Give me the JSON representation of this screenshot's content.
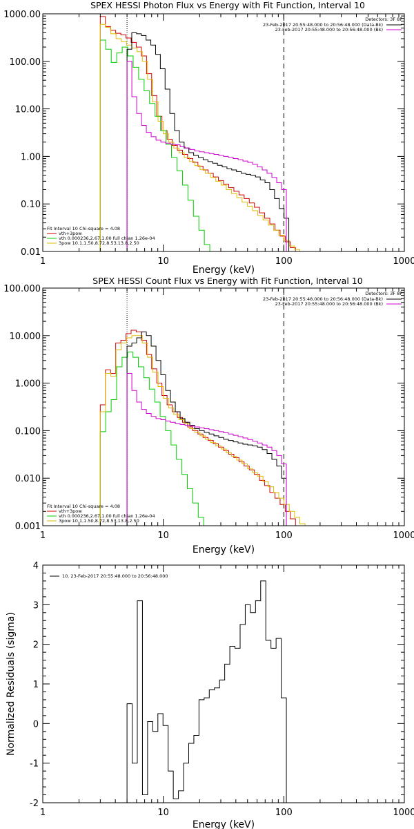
{
  "chart_data": [
    {
      "type": "line",
      "title": "SPEX HESSI Photon Flux vs Energy with Fit Function, Interval 10",
      "xlabel": "Energy (keV)",
      "ylabel": "",
      "xscale": "log",
      "yscale": "log",
      "xlim": [
        1,
        1000
      ],
      "ylim": [
        0.01,
        1000
      ],
      "xticks": [
        "1",
        "10",
        "100",
        "1000"
      ],
      "yticks": [
        "0.01",
        "0.10",
        "1.00",
        "10.00",
        "100.00",
        "1000.00"
      ],
      "vlines": {
        "dotted": 5,
        "dashed": 100
      },
      "legend_right": {
        "header": "Detectors: 3F 8F",
        "entries": [
          {
            "label": "23-Feb-2017 20:55:48.000 to 20:56:48.000 (Data-Bk)",
            "color": "#000000"
          },
          {
            "label": "23-Feb-2017 20:55:48.000 to 20:56:48.000 (Bk)",
            "color": "#cc00cc"
          }
        ]
      },
      "legend_left": {
        "header": "Fit Interval 10   Chi-square = 4.08",
        "entries": [
          {
            "label": "vth+3pow",
            "color": "#cc0000"
          },
          {
            "label": "vth 0.000236,2.67,1.00   full chian 1.26e-04",
            "color": "#00cc00"
          },
          {
            "label": "3pow 10.1,1.50,8.72,8.53,13.8,2.50",
            "color": "#ddbb00"
          }
        ]
      },
      "series": [
        {
          "name": "vth+3pow",
          "color": "#cc0000",
          "x_start": 3,
          "x_end": 125,
          "y": [
            880,
            540,
            450,
            390,
            360,
            310,
            250,
            200,
            130,
            55,
            19,
            7,
            3.5,
            2.3,
            1.7,
            1.35,
            1.1,
            0.9,
            0.75,
            0.62,
            0.52,
            0.44,
            0.37,
            0.31,
            0.26,
            0.22,
            0.185,
            0.155,
            0.13,
            0.105,
            0.085,
            0.065,
            0.05,
            0.038,
            0.028,
            0.021,
            0.016,
            0.012
          ]
        },
        {
          "name": "vth",
          "color": "#00cc00",
          "x_start": 3,
          "x_end": 27,
          "y": [
            280,
            180,
            95,
            150,
            200,
            130,
            75,
            42,
            24,
            13,
            7,
            3.5,
            1.8,
            0.95,
            0.5,
            0.25,
            0.12,
            0.055,
            0.028,
            0.014,
            0.01
          ]
        },
        {
          "name": "3pow",
          "color": "#ddbb00",
          "x_start": 3,
          "x_end": 150,
          "y": [
            600,
            520,
            380,
            300,
            260,
            220,
            190,
            160,
            100,
            42,
            14,
            5.5,
            3,
            2,
            1.5,
            1.2,
            0.95,
            0.78,
            0.64,
            0.53,
            0.44,
            0.36,
            0.3,
            0.25,
            0.2,
            0.165,
            0.135,
            0.11,
            0.09,
            0.072,
            0.057,
            0.046,
            0.036,
            0.028,
            0.022,
            0.017,
            0.013,
            0.011,
            0.01
          ]
        },
        {
          "name": "Data-Bk",
          "color": "#000000",
          "x_start": 5,
          "x_end": 110,
          "y": [
            180,
            400,
            380,
            350,
            280,
            220,
            140,
            70,
            26,
            8,
            3.5,
            2.0,
            1.5,
            1.2,
            1.05,
            0.95,
            0.85,
            0.78,
            0.72,
            0.65,
            0.6,
            0.55,
            0.52,
            0.48,
            0.44,
            0.42,
            0.4,
            0.37,
            0.32,
            0.28,
            0.2,
            0.13,
            0.08,
            0.05
          ]
        },
        {
          "name": "Bk",
          "color": "#cc00cc",
          "x_start": 5,
          "x_end": 105,
          "y": [
            100,
            18,
            8,
            4.5,
            3.2,
            2.6,
            2.2,
            2.0,
            1.9,
            1.8,
            1.75,
            1.6,
            1.5,
            1.4,
            1.3,
            1.25,
            1.2,
            1.15,
            1.1,
            1.05,
            1.0,
            0.95,
            0.9,
            0.85,
            0.8,
            0.75,
            0.68,
            0.6,
            0.52,
            0.44,
            0.36,
            0.28,
            0.2
          ]
        }
      ]
    },
    {
      "type": "line",
      "title": "SPEX HESSI Count Flux vs Energy with Fit Function, Interval 10",
      "xlabel": "Energy (keV)",
      "ylabel": "",
      "xscale": "log",
      "yscale": "log",
      "xlim": [
        1,
        1000
      ],
      "ylim": [
        0.001,
        100
      ],
      "xticks": [
        "1",
        "10",
        "100",
        "1000"
      ],
      "yticks": [
        "0.001",
        "0.010",
        "0.100",
        "1.000",
        "10.000",
        "100.000"
      ],
      "vlines": {
        "dotted": 5,
        "dashed": 100
      },
      "legend_right": {
        "header": "Detectors: 3F 8F",
        "entries": [
          {
            "label": "23-Feb-2017 20:55:48.000 to 20:56:48.000 (Data-Bk)",
            "color": "#000000"
          },
          {
            "label": "23-Feb-2017 20:55:48.000 to 20:56:48.000 (Bk)",
            "color": "#cc00cc"
          }
        ]
      },
      "legend_left": {
        "header": "Fit Interval 10   Chi-square = 4.08",
        "entries": [
          {
            "label": "vth+3pow",
            "color": "#cc0000"
          },
          {
            "label": "vth 0.000236,2.67,1.00   full chian 1.26e-04",
            "color": "#00cc00"
          },
          {
            "label": "3pow 10.1,1.50,8.72,8.53,13.8,2.50",
            "color": "#ddbb00"
          }
        ]
      },
      "series": [
        {
          "name": "vth+3pow",
          "color": "#cc0000",
          "x_start": 3,
          "x_end": 125,
          "y": [
            0.35,
            1.9,
            1.6,
            7,
            8,
            11,
            13,
            12,
            8,
            4,
            2,
            1,
            0.55,
            0.35,
            0.25,
            0.19,
            0.15,
            0.12,
            0.1,
            0.085,
            0.072,
            0.062,
            0.053,
            0.045,
            0.038,
            0.032,
            0.027,
            0.022,
            0.018,
            0.015,
            0.012,
            0.009,
            0.007,
            0.005,
            0.0038,
            0.0028,
            0.002,
            0.0014
          ]
        },
        {
          "name": "vth",
          "color": "#00cc00",
          "x_start": 3,
          "x_end": 24,
          "y": [
            0.095,
            0.25,
            0.45,
            2.2,
            3.5,
            4.5,
            3.5,
            2.2,
            1.3,
            0.75,
            0.4,
            0.2,
            0.1,
            0.05,
            0.025,
            0.012,
            0.006,
            0.003,
            0.0015,
            0.001
          ]
        },
        {
          "name": "3pow",
          "color": "#ddbb00",
          "x_start": 3,
          "x_end": 150,
          "y": [
            0.25,
            1.6,
            1.4,
            5,
            7,
            9,
            10,
            10,
            7,
            3.5,
            1.7,
            0.85,
            0.48,
            0.3,
            0.22,
            0.17,
            0.14,
            0.11,
            0.092,
            0.078,
            0.066,
            0.056,
            0.048,
            0.041,
            0.034,
            0.029,
            0.024,
            0.02,
            0.016,
            0.013,
            0.011,
            0.0085,
            0.0066,
            0.005,
            0.0038,
            0.0028,
            0.002,
            0.0015,
            0.0011
          ]
        },
        {
          "name": "Data-Bk",
          "color": "#000000",
          "x_start": 5,
          "x_end": 105,
          "y": [
            6,
            7,
            9,
            12,
            10,
            6,
            3,
            1.5,
            0.7,
            0.4,
            0.25,
            0.18,
            0.15,
            0.13,
            0.11,
            0.1,
            0.092,
            0.085,
            0.078,
            0.072,
            0.066,
            0.062,
            0.058,
            0.055,
            0.052,
            0.05,
            0.048,
            0.045,
            0.04,
            0.033,
            0.025,
            0.018,
            0.01
          ]
        },
        {
          "name": "Bk",
          "color": "#cc00cc",
          "x_start": 5,
          "x_end": 105,
          "y": [
            1.6,
            0.7,
            0.4,
            0.28,
            0.23,
            0.2,
            0.18,
            0.17,
            0.16,
            0.15,
            0.14,
            0.135,
            0.13,
            0.125,
            0.12,
            0.115,
            0.11,
            0.105,
            0.1,
            0.095,
            0.09,
            0.085,
            0.08,
            0.075,
            0.07,
            0.065,
            0.06,
            0.055,
            0.05,
            0.045,
            0.038,
            0.03,
            0.02
          ]
        }
      ]
    },
    {
      "type": "line",
      "title": "",
      "xlabel": "Energy (keV)",
      "ylabel": "Normalized Residuals (sigma)",
      "xscale": "log",
      "yscale": "linear",
      "xlim": [
        1,
        1000
      ],
      "ylim": [
        -2,
        4
      ],
      "xticks": [
        "1",
        "10",
        "100",
        "1000"
      ],
      "yticks": [
        "-2",
        "-1",
        "0",
        "1",
        "2",
        "3",
        "4"
      ],
      "legend": "10. 23-Feb-2017 20:55:48.000 to 20:56:48.000",
      "series": [
        {
          "name": "10. 23-Feb-2017 20:55:48.000 to 20:56:48.000",
          "color": "#000000",
          "x_start": 5,
          "x_end": 105,
          "y": [
            0.5,
            -1.0,
            3.1,
            -1.8,
            0.05,
            -0.2,
            0.25,
            -0.05,
            -1.2,
            -1.9,
            -1.7,
            -1.0,
            -0.5,
            -0.3,
            0.6,
            0.65,
            0.85,
            0.9,
            1.1,
            1.5,
            1.95,
            1.9,
            2.5,
            3.0,
            2.8,
            3.1,
            3.6,
            2.1,
            1.9,
            2.15,
            0.65
          ]
        }
      ]
    }
  ]
}
